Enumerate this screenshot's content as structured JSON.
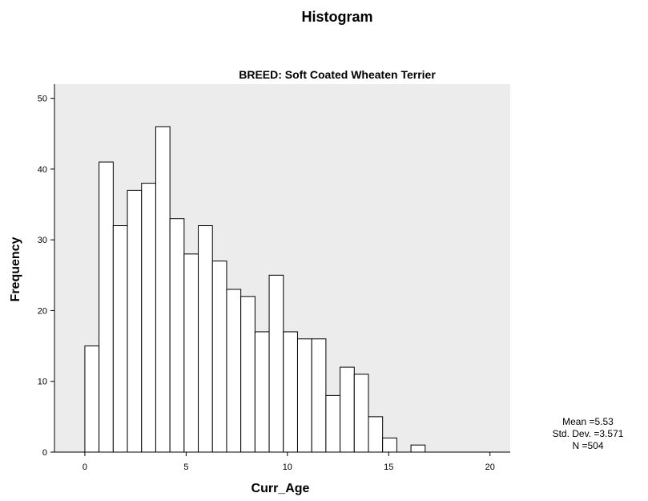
{
  "chart_data": {
    "type": "bar",
    "title": "Histogram",
    "subtitle": "BREED: Soft Coated Wheaten Terrier",
    "xlabel": "Curr_Age",
    "ylabel": "Frequency",
    "xlim": [
      -1.5,
      21
    ],
    "ylim": [
      0,
      52
    ],
    "xticks": [
      0,
      5,
      10,
      15,
      20
    ],
    "yticks": [
      0,
      10,
      20,
      30,
      40,
      50
    ],
    "bin_width": 0.7,
    "bin_start": 0,
    "values": [
      15,
      41,
      32,
      37,
      38,
      46,
      33,
      28,
      32,
      27,
      23,
      22,
      17,
      25,
      17,
      16,
      16,
      8,
      12,
      11,
      5,
      2,
      0,
      1
    ],
    "bar_fill": "#ffffff",
    "plot_background": "#ececec",
    "stats": {
      "mean": "Mean =5.53",
      "std": "Std. Dev. =3.571",
      "n": "N =504"
    }
  }
}
